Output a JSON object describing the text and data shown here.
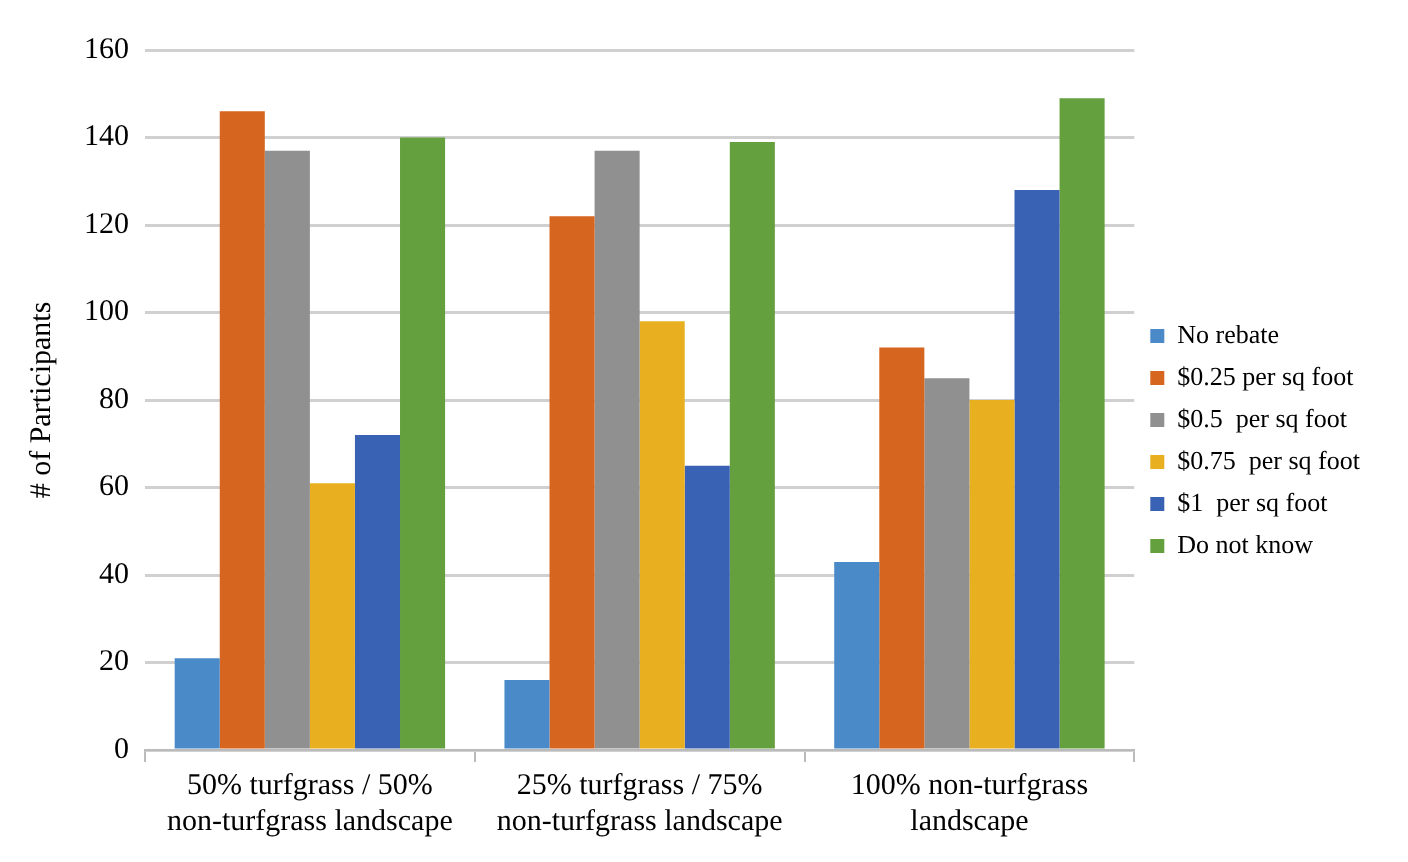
{
  "chart_data": {
    "type": "bar",
    "ylabel": "# of Participants",
    "categories": [
      "50% turfgrass / 50% non-turfgrass landscape",
      "25% turfgrass / 75% non-turfgrass landscape",
      "100% non-turfgrass landscape"
    ],
    "series": [
      {
        "name": "No rebate",
        "color": "#4a8ac8",
        "values": [
          21,
          16,
          43
        ]
      },
      {
        "name": "$0.25 per sq foot",
        "color": "#d6651f",
        "values": [
          146,
          122,
          92
        ]
      },
      {
        "name": "$0.5  per sq foot",
        "color": "#909090",
        "values": [
          137,
          137,
          85
        ]
      },
      {
        "name": "$0.75  per sq foot",
        "color": "#e8b020",
        "values": [
          61,
          98,
          80
        ]
      },
      {
        "name": "$1  per sq foot",
        "color": "#3a62b4",
        "values": [
          72,
          65,
          128
        ]
      },
      {
        "name": "Do not know",
        "color": "#65a03e",
        "values": [
          140,
          139,
          149
        ]
      }
    ],
    "ylim": [
      0,
      160
    ],
    "yticks": [
      0,
      20,
      40,
      60,
      80,
      100,
      120,
      140,
      160
    ],
    "grid": "y",
    "legend": "right"
  }
}
